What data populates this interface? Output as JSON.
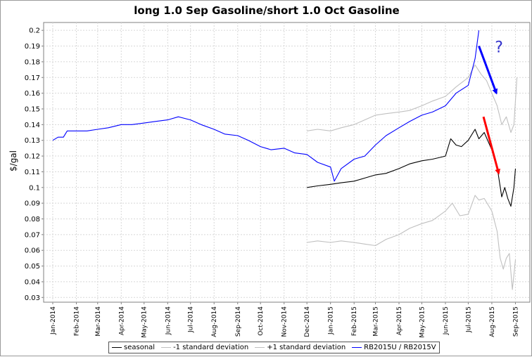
{
  "chart_data": {
    "type": "line",
    "title": "long 1.0 Sep Gasoline/short 1.0 Oct Gasoline",
    "ylabel": "$/gal",
    "xlabel": "",
    "ylim": [
      0.027,
      0.205
    ],
    "xlim": [
      "2013-12-20",
      "2015-09-20"
    ],
    "y_ticks": [
      0.03,
      0.04,
      0.05,
      0.06,
      0.07,
      0.08,
      0.09,
      0.1,
      0.11,
      0.12,
      0.13,
      0.14,
      0.15,
      0.16,
      0.17,
      0.18,
      0.19,
      0.2
    ],
    "x_ticks": [
      {
        "date": "2014-01-01",
        "label": "Jan-2014"
      },
      {
        "date": "2014-02-01",
        "label": "Feb-2014"
      },
      {
        "date": "2014-03-01",
        "label": "Mar-2014"
      },
      {
        "date": "2014-04-01",
        "label": "Apr-2014"
      },
      {
        "date": "2014-05-01",
        "label": "May-2014"
      },
      {
        "date": "2014-06-01",
        "label": "Jun-2014"
      },
      {
        "date": "2014-07-01",
        "label": "Jul-2014"
      },
      {
        "date": "2014-08-01",
        "label": "Aug-2014"
      },
      {
        "date": "2014-09-01",
        "label": "Sep-2014"
      },
      {
        "date": "2014-10-01",
        "label": "Oct-2014"
      },
      {
        "date": "2014-11-01",
        "label": "Nov-2014"
      },
      {
        "date": "2014-12-01",
        "label": "Dec-2014"
      },
      {
        "date": "2015-01-01",
        "label": "Jan-2015"
      },
      {
        "date": "2015-02-01",
        "label": "Feb-2015"
      },
      {
        "date": "2015-03-01",
        "label": "Mar-2015"
      },
      {
        "date": "2015-04-01",
        "label": "Apr-2015"
      },
      {
        "date": "2015-05-01",
        "label": "May-2015"
      },
      {
        "date": "2015-06-01",
        "label": "Jun-2015"
      },
      {
        "date": "2015-07-01",
        "label": "Jul-2015"
      },
      {
        "date": "2015-08-01",
        "label": "Aug-2015"
      },
      {
        "date": "2015-09-01",
        "label": "Sep-2015"
      }
    ],
    "grid": true,
    "legend_position": "bottom",
    "series": [
      {
        "name": "seasonal",
        "color": "#000000",
        "points": [
          [
            "2014-12-01",
            0.1
          ],
          [
            "2014-12-15",
            0.101
          ],
          [
            "2015-01-01",
            0.102
          ],
          [
            "2015-01-15",
            0.103
          ],
          [
            "2015-02-01",
            0.104
          ],
          [
            "2015-02-15",
            0.106
          ],
          [
            "2015-03-01",
            0.108
          ],
          [
            "2015-03-15",
            0.109
          ],
          [
            "2015-04-01",
            0.112
          ],
          [
            "2015-04-15",
            0.115
          ],
          [
            "2015-05-01",
            0.117
          ],
          [
            "2015-05-15",
            0.118
          ],
          [
            "2015-06-01",
            0.12
          ],
          [
            "2015-06-08",
            0.131
          ],
          [
            "2015-06-15",
            0.127
          ],
          [
            "2015-06-22",
            0.126
          ],
          [
            "2015-07-01",
            0.13
          ],
          [
            "2015-07-10",
            0.137
          ],
          [
            "2015-07-15",
            0.131
          ],
          [
            "2015-07-22",
            0.135
          ],
          [
            "2015-08-01",
            0.124
          ],
          [
            "2015-08-08",
            0.113
          ],
          [
            "2015-08-14",
            0.094
          ],
          [
            "2015-08-18",
            0.1
          ],
          [
            "2015-08-22",
            0.093
          ],
          [
            "2015-08-26",
            0.088
          ],
          [
            "2015-08-30",
            0.1
          ],
          [
            "2015-09-01",
            0.112
          ]
        ]
      },
      {
        "name": "-1 standard deviation",
        "color": "#c0c0c0",
        "points": [
          [
            "2014-12-01",
            0.065
          ],
          [
            "2014-12-15",
            0.066
          ],
          [
            "2015-01-01",
            0.065
          ],
          [
            "2015-01-15",
            0.066
          ],
          [
            "2015-02-01",
            0.065
          ],
          [
            "2015-02-15",
            0.064
          ],
          [
            "2015-03-01",
            0.063
          ],
          [
            "2015-03-15",
            0.067
          ],
          [
            "2015-04-01",
            0.07
          ],
          [
            "2015-04-15",
            0.074
          ],
          [
            "2015-05-01",
            0.077
          ],
          [
            "2015-05-15",
            0.079
          ],
          [
            "2015-06-01",
            0.085
          ],
          [
            "2015-06-10",
            0.09
          ],
          [
            "2015-06-20",
            0.082
          ],
          [
            "2015-07-01",
            0.083
          ],
          [
            "2015-07-10",
            0.095
          ],
          [
            "2015-07-15",
            0.092
          ],
          [
            "2015-07-22",
            0.093
          ],
          [
            "2015-08-01",
            0.085
          ],
          [
            "2015-08-08",
            0.072
          ],
          [
            "2015-08-12",
            0.055
          ],
          [
            "2015-08-16",
            0.048
          ],
          [
            "2015-08-20",
            0.055
          ],
          [
            "2015-08-24",
            0.058
          ],
          [
            "2015-08-28",
            0.035
          ],
          [
            "2015-09-01",
            0.054
          ]
        ]
      },
      {
        "name": "+1 standard deviation",
        "color": "#c0c0c0",
        "points": [
          [
            "2014-12-01",
            0.136
          ],
          [
            "2014-12-15",
            0.137
          ],
          [
            "2015-01-01",
            0.136
          ],
          [
            "2015-01-15",
            0.138
          ],
          [
            "2015-02-01",
            0.14
          ],
          [
            "2015-02-15",
            0.143
          ],
          [
            "2015-03-01",
            0.146
          ],
          [
            "2015-03-15",
            0.147
          ],
          [
            "2015-04-01",
            0.148
          ],
          [
            "2015-04-15",
            0.149
          ],
          [
            "2015-05-01",
            0.152
          ],
          [
            "2015-05-15",
            0.155
          ],
          [
            "2015-06-01",
            0.158
          ],
          [
            "2015-06-15",
            0.164
          ],
          [
            "2015-07-01",
            0.17
          ],
          [
            "2015-07-10",
            0.178
          ],
          [
            "2015-07-18",
            0.172
          ],
          [
            "2015-07-25",
            0.168
          ],
          [
            "2015-08-01",
            0.16
          ],
          [
            "2015-08-08",
            0.152
          ],
          [
            "2015-08-14",
            0.14
          ],
          [
            "2015-08-20",
            0.145
          ],
          [
            "2015-08-26",
            0.135
          ],
          [
            "2015-08-30",
            0.14
          ],
          [
            "2015-09-03",
            0.17
          ]
        ]
      },
      {
        "name": "RB2015U / RB2015V",
        "color": "#0000ff",
        "points": [
          [
            "2014-01-01",
            0.13
          ],
          [
            "2014-01-08",
            0.132
          ],
          [
            "2014-01-15",
            0.132
          ],
          [
            "2014-01-20",
            0.136
          ],
          [
            "2014-02-01",
            0.136
          ],
          [
            "2014-02-15",
            0.136
          ],
          [
            "2014-03-01",
            0.137
          ],
          [
            "2014-03-15",
            0.138
          ],
          [
            "2014-04-01",
            0.14
          ],
          [
            "2014-04-15",
            0.14
          ],
          [
            "2014-05-01",
            0.141
          ],
          [
            "2014-05-15",
            0.142
          ],
          [
            "2014-06-01",
            0.143
          ],
          [
            "2014-06-15",
            0.145
          ],
          [
            "2014-07-01",
            0.143
          ],
          [
            "2014-07-15",
            0.14
          ],
          [
            "2014-08-01",
            0.137
          ],
          [
            "2014-08-15",
            0.134
          ],
          [
            "2014-09-01",
            0.133
          ],
          [
            "2014-09-15",
            0.13
          ],
          [
            "2014-10-01",
            0.126
          ],
          [
            "2014-10-15",
            0.124
          ],
          [
            "2014-11-01",
            0.125
          ],
          [
            "2014-11-15",
            0.122
          ],
          [
            "2014-12-01",
            0.121
          ],
          [
            "2014-12-15",
            0.116
          ],
          [
            "2015-01-01",
            0.113
          ],
          [
            "2015-01-06",
            0.104
          ],
          [
            "2015-01-15",
            0.112
          ],
          [
            "2015-02-01",
            0.118
          ],
          [
            "2015-02-15",
            0.12
          ],
          [
            "2015-03-01",
            0.127
          ],
          [
            "2015-03-15",
            0.133
          ],
          [
            "2015-04-01",
            0.138
          ],
          [
            "2015-04-15",
            0.142
          ],
          [
            "2015-05-01",
            0.146
          ],
          [
            "2015-05-15",
            0.148
          ],
          [
            "2015-06-01",
            0.152
          ],
          [
            "2015-06-15",
            0.16
          ],
          [
            "2015-07-01",
            0.165
          ],
          [
            "2015-07-10",
            0.182
          ],
          [
            "2015-07-15",
            0.2
          ]
        ]
      }
    ],
    "annotations": [
      {
        "type": "arrow",
        "color": "#0000ff",
        "from": [
          "2015-07-15",
          0.19
        ],
        "to": [
          "2015-08-07",
          0.16
        ]
      },
      {
        "type": "text",
        "text": "?",
        "color": "#3333cc",
        "at": [
          "2015-08-05",
          0.186
        ]
      },
      {
        "type": "arrow",
        "color": "#ff0000",
        "from": [
          "2015-07-21",
          0.145
        ],
        "to": [
          "2015-08-10",
          0.109
        ]
      }
    ]
  }
}
